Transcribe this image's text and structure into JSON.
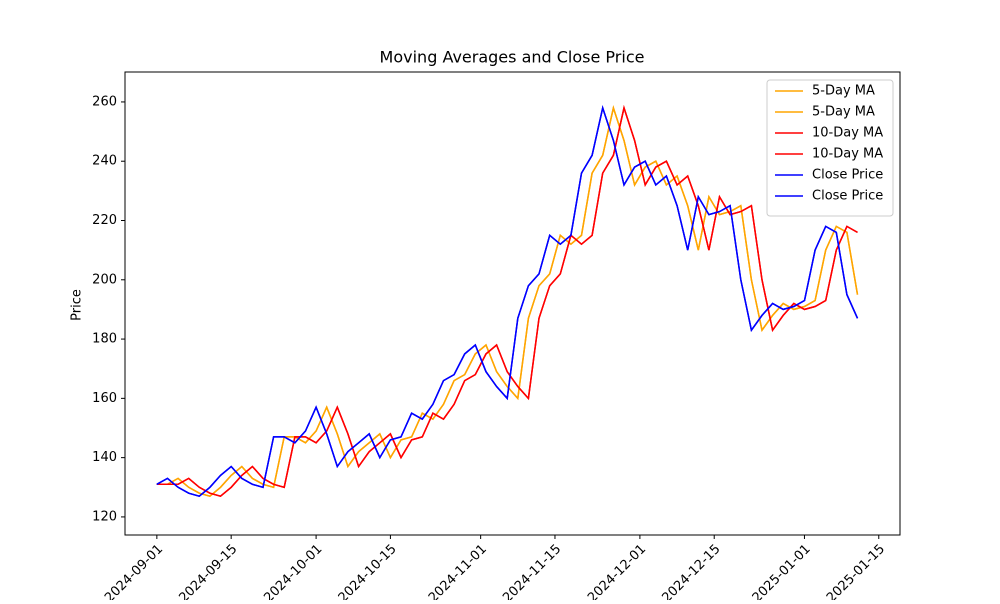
{
  "chart_data": {
    "type": "line",
    "title": "Moving Averages and Close Price",
    "y_label": "Price",
    "x": [
      "2024-09-01",
      "2024-09-03",
      "2024-09-05",
      "2024-09-07",
      "2024-09-09",
      "2024-09-11",
      "2024-09-13",
      "2024-09-15",
      "2024-09-17",
      "2024-09-19",
      "2024-09-21",
      "2024-09-23",
      "2024-09-25",
      "2024-09-27",
      "2024-09-29",
      "2024-10-01",
      "2024-10-03",
      "2024-10-05",
      "2024-10-07",
      "2024-10-09",
      "2024-10-11",
      "2024-10-13",
      "2024-10-15",
      "2024-10-17",
      "2024-10-19",
      "2024-10-21",
      "2024-10-23",
      "2024-10-25",
      "2024-10-27",
      "2024-10-29",
      "2024-10-31",
      "2024-11-02",
      "2024-11-04",
      "2024-11-06",
      "2024-11-08",
      "2024-11-10",
      "2024-11-12",
      "2024-11-14",
      "2024-11-16",
      "2024-11-18",
      "2024-11-20",
      "2024-11-22",
      "2024-11-24",
      "2024-11-26",
      "2024-11-28",
      "2024-11-30",
      "2024-12-02",
      "2024-12-04",
      "2024-12-06",
      "2024-12-08",
      "2024-12-10",
      "2024-12-12",
      "2024-12-14",
      "2024-12-16",
      "2024-12-18",
      "2024-12-20",
      "2024-12-22",
      "2024-12-24",
      "2024-12-26",
      "2024-12-28",
      "2024-12-30",
      "2025-01-01",
      "2025-01-03",
      "2025-01-05",
      "2025-01-07",
      "2025-01-09",
      "2025-01-11"
    ],
    "series": [
      {
        "name": "5-Day MA",
        "color": "orange",
        "values": [
          131,
          131,
          133,
          130,
          128,
          127,
          130,
          134,
          137,
          133,
          131,
          130,
          147,
          147,
          145,
          149,
          157,
          148,
          137,
          142,
          145,
          148,
          140,
          146,
          147,
          155,
          153,
          158,
          166,
          168,
          175,
          178,
          169,
          164,
          160,
          187,
          198,
          202,
          215,
          212,
          215,
          236,
          242,
          258,
          247,
          232,
          238,
          240,
          232,
          235,
          225,
          210,
          228,
          222,
          223,
          225,
          200,
          183,
          188,
          192,
          190,
          191,
          193,
          210,
          218,
          216,
          195
        ]
      },
      {
        "name": "5-Day MA",
        "color": "orange",
        "values": [
          131,
          131,
          133,
          130,
          128,
          127,
          130,
          134,
          137,
          133,
          131,
          130,
          147,
          147,
          145,
          149,
          157,
          148,
          137,
          142,
          145,
          148,
          140,
          146,
          147,
          155,
          153,
          158,
          166,
          168,
          175,
          178,
          169,
          164,
          160,
          187,
          198,
          202,
          215,
          212,
          215,
          236,
          242,
          258,
          247,
          232,
          238,
          240,
          232,
          235,
          225,
          210,
          228,
          222,
          223,
          225,
          200,
          183,
          188,
          192,
          190,
          191,
          193,
          210,
          218,
          216,
          195
        ]
      },
      {
        "name": "10-Day MA",
        "color": "red",
        "values": [
          131,
          131,
          131,
          133,
          130,
          128,
          127,
          130,
          134,
          137,
          133,
          131,
          130,
          147,
          147,
          145,
          149,
          157,
          148,
          137,
          142,
          145,
          148,
          140,
          146,
          147,
          155,
          153,
          158,
          166,
          168,
          175,
          178,
          169,
          164,
          160,
          187,
          198,
          202,
          215,
          212,
          215,
          236,
          242,
          258,
          247,
          232,
          238,
          240,
          232,
          235,
          225,
          210,
          228,
          222,
          223,
          225,
          200,
          183,
          188,
          192,
          190,
          191,
          193,
          210,
          218,
          216
        ]
      },
      {
        "name": "10-Day MA",
        "color": "red",
        "values": [
          131,
          131,
          131,
          133,
          130,
          128,
          127,
          130,
          134,
          137,
          133,
          131,
          130,
          147,
          147,
          145,
          149,
          157,
          148,
          137,
          142,
          145,
          148,
          140,
          146,
          147,
          155,
          153,
          158,
          166,
          168,
          175,
          178,
          169,
          164,
          160,
          187,
          198,
          202,
          215,
          212,
          215,
          236,
          242,
          258,
          247,
          232,
          238,
          240,
          232,
          235,
          225,
          210,
          228,
          222,
          223,
          225,
          200,
          183,
          188,
          192,
          190,
          191,
          193,
          210,
          218,
          216
        ]
      },
      {
        "name": "Close Price",
        "color": "blue",
        "values": [
          131,
          133,
          130,
          128,
          127,
          130,
          134,
          137,
          133,
          131,
          130,
          147,
          147,
          145,
          149,
          157,
          148,
          137,
          142,
          145,
          148,
          140,
          146,
          147,
          155,
          153,
          158,
          166,
          168,
          175,
          178,
          169,
          164,
          160,
          187,
          198,
          202,
          215,
          212,
          215,
          236,
          242,
          258,
          247,
          232,
          238,
          240,
          232,
          235,
          225,
          210,
          228,
          222,
          223,
          225,
          200,
          183,
          188,
          192,
          190,
          191,
          193,
          210,
          218,
          216,
          195,
          187
        ]
      },
      {
        "name": "Close Price",
        "color": "blue",
        "values": [
          131,
          133,
          130,
          128,
          127,
          130,
          134,
          137,
          133,
          131,
          130,
          147,
          147,
          145,
          149,
          157,
          148,
          137,
          142,
          145,
          148,
          140,
          146,
          147,
          155,
          153,
          158,
          166,
          168,
          175,
          178,
          169,
          164,
          160,
          187,
          198,
          202,
          215,
          212,
          215,
          236,
          242,
          258,
          247,
          232,
          238,
          240,
          232,
          235,
          225,
          210,
          228,
          222,
          223,
          225,
          200,
          183,
          188,
          192,
          190,
          191,
          193,
          210,
          218,
          216,
          195,
          187
        ]
      }
    ],
    "xlim": [
      "2024-08-26",
      "2025-01-19"
    ],
    "xticks": [
      "2024-09-01",
      "2024-09-15",
      "2024-10-01",
      "2024-10-15",
      "2024-11-01",
      "2024-11-15",
      "2024-12-01",
      "2024-12-15",
      "2025-01-01",
      "2025-01-15"
    ],
    "ylim": [
      113.9,
      270.1
    ],
    "yticks": [
      120,
      140,
      160,
      180,
      200,
      220,
      240,
      260
    ],
    "legend": "upper right"
  }
}
